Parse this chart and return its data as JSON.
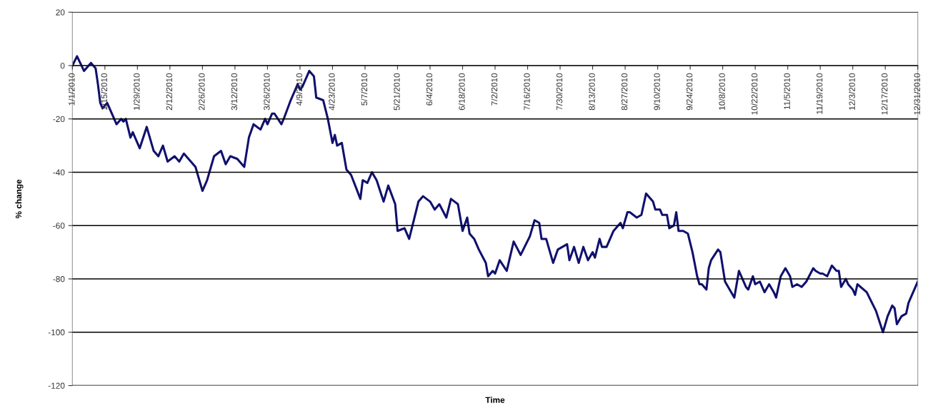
{
  "chart_data": {
    "type": "line",
    "xlabel": "Time",
    "ylabel": "% change",
    "ylim": [
      -120,
      20
    ],
    "yticks": [
      -120,
      -100,
      -80,
      -60,
      -40,
      -20,
      0,
      20
    ],
    "xlim": [
      "2010-01-01",
      "2010-12-31"
    ],
    "xticks": [
      {
        "value": "2010-01-01",
        "label": "1/1/2010"
      },
      {
        "value": "2010-01-15",
        "label": "1/15/2010"
      },
      {
        "value": "2010-01-29",
        "label": "1/29/2010"
      },
      {
        "value": "2010-02-12",
        "label": "2/12/2010"
      },
      {
        "value": "2010-02-26",
        "label": "2/26/2010"
      },
      {
        "value": "2010-03-12",
        "label": "3/12/2010"
      },
      {
        "value": "2010-03-26",
        "label": "3/26/2010"
      },
      {
        "value": "2010-04-09",
        "label": "4/9/2010"
      },
      {
        "value": "2010-04-23",
        "label": "4/23/2010"
      },
      {
        "value": "2010-05-07",
        "label": "5/7/2010"
      },
      {
        "value": "2010-05-21",
        "label": "5/21/2010"
      },
      {
        "value": "2010-06-04",
        "label": "6/4/2010"
      },
      {
        "value": "2010-06-18",
        "label": "6/18/2010"
      },
      {
        "value": "2010-07-02",
        "label": "7/2/2010"
      },
      {
        "value": "2010-07-16",
        "label": "7/16/2010"
      },
      {
        "value": "2010-07-30",
        "label": "7/30/2010"
      },
      {
        "value": "2010-08-13",
        "label": "8/13/2010"
      },
      {
        "value": "2010-08-27",
        "label": "8/27/2010"
      },
      {
        "value": "2010-09-10",
        "label": "9/10/2010"
      },
      {
        "value": "2010-09-24",
        "label": "9/24/2010"
      },
      {
        "value": "2010-10-08",
        "label": "10/8/2010"
      },
      {
        "value": "2010-10-22",
        "label": "10/22/2010"
      },
      {
        "value": "2010-11-05",
        "label": "11/5/2010"
      },
      {
        "value": "2010-11-19",
        "label": "11/19/2010"
      },
      {
        "value": "2010-12-03",
        "label": "12/3/2010"
      },
      {
        "value": "2010-12-17",
        "label": "12/17/2010"
      },
      {
        "value": "2010-12-31",
        "label": "12/31/2010"
      }
    ],
    "grid": "y",
    "marker": "none",
    "line_style": "solid",
    "series": [
      {
        "color": "#10106e",
        "x": [
          "2010-01-01",
          "2010-01-03",
          "2010-01-06",
          "2010-01-09",
          "2010-01-11",
          "2010-01-12",
          "2010-01-13",
          "2010-01-14",
          "2010-01-16",
          "2010-01-20",
          "2010-01-22",
          "2010-01-23",
          "2010-01-24",
          "2010-01-26",
          "2010-01-27",
          "2010-01-30",
          "2010-02-02",
          "2010-02-05",
          "2010-02-07",
          "2010-02-09",
          "2010-02-11",
          "2010-02-14",
          "2010-02-16",
          "2010-02-18",
          "2010-02-23",
          "2010-02-26",
          "2010-02-28",
          "2010-03-03",
          "2010-03-06",
          "2010-03-08",
          "2010-03-10",
          "2010-03-13",
          "2010-03-16",
          "2010-03-18",
          "2010-03-20",
          "2010-03-23",
          "2010-03-25",
          "2010-03-26",
          "2010-03-28",
          "2010-03-29",
          "2010-04-01",
          "2010-04-02",
          "2010-04-05",
          "2010-04-08",
          "2010-04-09",
          "2010-04-10",
          "2010-04-13",
          "2010-04-15",
          "2010-04-16",
          "2010-04-19",
          "2010-04-21",
          "2010-04-23",
          "2010-04-24",
          "2010-04-25",
          "2010-04-27",
          "2010-04-29",
          "2010-05-01",
          "2010-05-05",
          "2010-05-06",
          "2010-05-08",
          "2010-05-10",
          "2010-05-12",
          "2010-05-15",
          "2010-05-17",
          "2010-05-20",
          "2010-05-21",
          "2010-05-24",
          "2010-05-26",
          "2010-05-28",
          "2010-05-30",
          "2010-06-01",
          "2010-06-04",
          "2010-06-06",
          "2010-06-08",
          "2010-06-11",
          "2010-06-13",
          "2010-06-16",
          "2010-06-18",
          "2010-06-20",
          "2010-06-21",
          "2010-06-23",
          "2010-06-25",
          "2010-06-28",
          "2010-06-29",
          "2010-07-01",
          "2010-07-02",
          "2010-07-04",
          "2010-07-07",
          "2010-07-10",
          "2010-07-13",
          "2010-07-17",
          "2010-07-19",
          "2010-07-21",
          "2010-07-22",
          "2010-07-24",
          "2010-07-27",
          "2010-07-29",
          "2010-08-02",
          "2010-08-03",
          "2010-08-05",
          "2010-08-07",
          "2010-08-09",
          "2010-08-11",
          "2010-08-13",
          "2010-08-14",
          "2010-08-16",
          "2010-08-17",
          "2010-08-19",
          "2010-08-22",
          "2010-08-25",
          "2010-08-26",
          "2010-08-28",
          "2010-08-29",
          "2010-09-01",
          "2010-09-03",
          "2010-09-05",
          "2010-09-08",
          "2010-09-09",
          "2010-09-11",
          "2010-09-12",
          "2010-09-14",
          "2010-09-15",
          "2010-09-17",
          "2010-09-18",
          "2010-09-19",
          "2010-09-21",
          "2010-09-23",
          "2010-09-25",
          "2010-09-27",
          "2010-09-28",
          "2010-09-29",
          "2010-10-01",
          "2010-10-02",
          "2010-10-03",
          "2010-10-06",
          "2010-10-07",
          "2010-10-09",
          "2010-10-11",
          "2010-10-13",
          "2010-10-15",
          "2010-10-16",
          "2010-10-18",
          "2010-10-19",
          "2010-10-21",
          "2010-10-22",
          "2010-10-24",
          "2010-10-26",
          "2010-10-28",
          "2010-10-30",
          "2010-10-31",
          "2010-11-02",
          "2010-11-04",
          "2010-11-06",
          "2010-11-07",
          "2010-11-09",
          "2010-11-11",
          "2010-11-13",
          "2010-11-16",
          "2010-11-17",
          "2010-11-19",
          "2010-11-20",
          "2010-11-22",
          "2010-11-24",
          "2010-11-26",
          "2010-11-27",
          "2010-11-28",
          "2010-11-30",
          "2010-12-01",
          "2010-12-03",
          "2010-12-04",
          "2010-12-05",
          "2010-12-09",
          "2010-12-13",
          "2010-12-16",
          "2010-12-18",
          "2010-12-20",
          "2010-12-21",
          "2010-12-22",
          "2010-12-24",
          "2010-12-26",
          "2010-12-27",
          "2010-12-29",
          "2010-12-31"
        ],
        "values": [
          0,
          3.5,
          -2,
          1,
          -1,
          -7,
          -14,
          -16,
          -14,
          -22,
          -20,
          -21,
          -20,
          -27,
          -25,
          -31,
          -23,
          -32,
          -34,
          -30,
          -36,
          -34,
          -36,
          -33,
          -38,
          -47,
          -43,
          -34,
          -32,
          -37,
          -34,
          -35,
          -38,
          -27,
          -22,
          -24,
          -20,
          -22,
          -18,
          -18,
          -22,
          -20,
          -13,
          -7,
          -9,
          -8,
          -2,
          -4,
          -12,
          -13,
          -20,
          -29,
          -26,
          -30,
          -29,
          -39,
          -41,
          -50,
          -43,
          -44,
          -40,
          -43,
          -51,
          -45,
          -52,
          -62,
          -61,
          -65,
          -58,
          -51,
          -49,
          -51,
          -54,
          -52,
          -57,
          -50,
          -52,
          -62,
          -57,
          -63,
          -65,
          -69,
          -74,
          -79,
          -77,
          -78,
          -73,
          -77,
          -66,
          -71,
          -64,
          -58,
          -59,
          -65,
          -65,
          -74,
          -69,
          -67,
          -73,
          -68,
          -74,
          -68,
          -73,
          -70,
          -72,
          -65,
          -68,
          -68,
          -62,
          -59,
          -61,
          -55,
          -55,
          -57,
          -56,
          -48,
          -51,
          -54,
          -54,
          -56,
          -56,
          -61,
          -60,
          -55,
          -62,
          -62,
          -63,
          -70,
          -79,
          -82,
          -82,
          -84,
          -76,
          -73,
          -69,
          -70,
          -81,
          -84,
          -87,
          -77,
          -79,
          -83,
          -84,
          -79,
          -82,
          -81,
          -85,
          -82,
          -85,
          -87,
          -79,
          -76,
          -79,
          -83,
          -82,
          -83,
          -81,
          -76,
          -77,
          -78,
          -78,
          -79,
          -75,
          -77,
          -77,
          -83,
          -80,
          -82,
          -84,
          -86,
          -82,
          -85,
          -92,
          -100,
          -94,
          -90,
          -91,
          -97,
          -94,
          -93,
          -89,
          -85,
          -81
        ]
      }
    ]
  }
}
